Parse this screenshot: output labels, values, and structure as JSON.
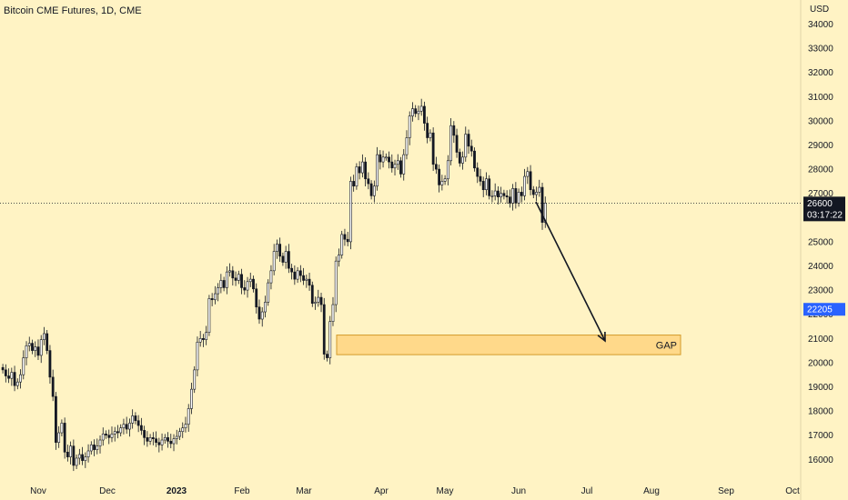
{
  "chart_data": {
    "type": "candlestick",
    "title": "Bitcoin CME Futures, 1D, CME",
    "ylabel": "USD",
    "ylim": [
      15200,
      34500
    ],
    "y_ticks": [
      16000,
      17000,
      18000,
      19000,
      20000,
      21000,
      22000,
      23000,
      24000,
      25000,
      26000,
      27000,
      28000,
      29000,
      30000,
      31000,
      32000,
      33000,
      34000
    ],
    "x_ticks": [
      "Nov",
      "Dec",
      "2023",
      "Feb",
      "Mar",
      "Apr",
      "May",
      "Jun",
      "Jul",
      "Aug",
      "Sep",
      "Oct"
    ],
    "price_badge": {
      "value": "26600",
      "timer": "03:17:22",
      "color": "#131722"
    },
    "marker_badge": {
      "value": "22205",
      "color": "#2962ff"
    },
    "gap_zone": {
      "label": "GAP",
      "low": 20330,
      "high": 21140,
      "color": "#ffd98a"
    },
    "arrow": {
      "from_price": 26650,
      "to_price": 20900
    },
    "close_series": [
      19700,
      19450,
      19350,
      19600,
      19050,
      19200,
      19500,
      20200,
      20700,
      20800,
      20500,
      20650,
      20300,
      20950,
      21200,
      20500,
      19400,
      18600,
      16700,
      17100,
      17500,
      16300,
      16100,
      16550,
      15750,
      16050,
      16200,
      15950,
      16100,
      16350,
      16600,
      16400,
      16550,
      16800,
      17050,
      17000,
      16900,
      17050,
      17150,
      17100,
      17300,
      17450,
      17250,
      17500,
      17800,
      17600,
      17400,
      17200,
      16900,
      16750,
      16900,
      16850,
      16700,
      16600,
      16800,
      16900,
      16750,
      16650,
      16850,
      16950,
      17150,
      17300,
      17450,
      18100,
      18900,
      19700,
      20850,
      21000,
      20950,
      21250,
      22650,
      22600,
      22850,
      23100,
      23400,
      23100,
      23750,
      23800,
      23500,
      23400,
      23650,
      23100,
      23000,
      23350,
      23450,
      23050,
      22300,
      21800,
      22100,
      22500,
      23300,
      23800,
      24600,
      24900,
      24400,
      24150,
      24600,
      23900,
      23750,
      23450,
      23800,
      23600,
      23400,
      23450,
      23200,
      22450,
      22500,
      22700,
      22400,
      20350,
      20200,
      21700,
      22400,
      24200,
      24450,
      25300,
      25100,
      25000,
      27500,
      27300,
      28100,
      27850,
      28300,
      27600,
      27400,
      26900,
      27300,
      28600,
      28300,
      28500,
      28500,
      28300,
      28050,
      28200,
      28350,
      27800,
      28600,
      29300,
      30200,
      30500,
      30300,
      30400,
      30600,
      29900,
      29300,
      29500,
      28200,
      28000,
      27350,
      27500,
      27600,
      28350,
      29800,
      29400,
      28700,
      28250,
      28500,
      29450,
      28950,
      28750,
      28050,
      27700,
      27500,
      27150,
      27600,
      26900,
      26900,
      27100,
      26850,
      27000,
      26900,
      26850,
      26600,
      27200,
      26600,
      27050,
      26900,
      27700,
      27900,
      27150,
      26950,
      27050,
      27250,
      25800,
      26600
    ]
  }
}
